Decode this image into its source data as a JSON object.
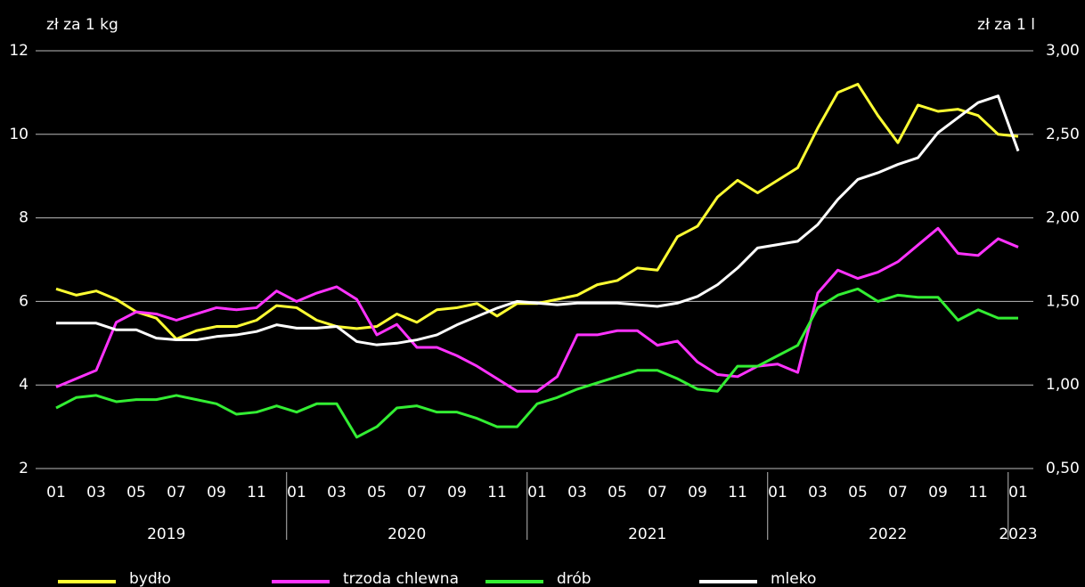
{
  "chart_data": {
    "type": "line",
    "y_label": "zł za 1 kg",
    "y2_label": "zł za 1 l",
    "categories": [
      "01",
      null,
      "03",
      null,
      "05",
      null,
      "07",
      null,
      "09",
      null,
      "11",
      null,
      "01",
      null,
      "03",
      null,
      "05",
      null,
      "07",
      null,
      "09",
      null,
      "11",
      null,
      "01",
      null,
      "03",
      null,
      "05",
      null,
      "07",
      null,
      "09",
      null,
      "11",
      null,
      "01",
      null,
      "03",
      null,
      "05",
      null,
      "07",
      null,
      "09",
      null,
      "11",
      null,
      "01"
    ],
    "years": [
      {
        "label": "2019",
        "months": 12
      },
      {
        "label": "2020",
        "months": 12
      },
      {
        "label": "2021",
        "months": 12
      },
      {
        "label": "2022",
        "months": 12
      },
      {
        "label": "2023",
        "months": 1
      }
    ],
    "ylim": [
      2,
      12
    ],
    "yticks": [
      2,
      4,
      6,
      8,
      10,
      12
    ],
    "y2lim": [
      0.5,
      3.0
    ],
    "y2ticks": [
      {
        "value": 0.5,
        "label": "0,50"
      },
      {
        "value": 1.0,
        "label": "1,00"
      },
      {
        "value": 1.5,
        "label": "1,50"
      },
      {
        "value": 2.0,
        "label": "2,00"
      },
      {
        "value": 2.5,
        "label": "2,50"
      },
      {
        "value": 3.0,
        "label": "3,00"
      }
    ],
    "grid": true,
    "legend": "bottom",
    "series": [
      {
        "name": "bydło",
        "color": "#ffff33",
        "values": [
          6.3,
          6.15,
          6.25,
          6.05,
          5.75,
          5.6,
          5.1,
          5.3,
          5.4,
          5.4,
          5.55,
          5.9,
          5.85,
          5.55,
          5.4,
          5.35,
          5.4,
          5.7,
          5.5,
          5.8,
          5.85,
          5.95,
          5.65,
          5.95,
          5.95,
          6.05,
          6.15,
          6.4,
          6.5,
          6.8,
          6.75,
          7.55,
          7.8,
          8.5,
          8.9,
          8.6,
          8.9,
          9.2,
          10.15,
          11.0,
          11.2,
          10.45,
          9.8,
          10.7,
          10.55,
          10.6,
          10.45,
          10.0,
          9.95
        ]
      },
      {
        "name": "trzoda chlewna",
        "color": "#ff33ff",
        "values": [
          3.95,
          4.15,
          4.35,
          5.5,
          5.75,
          5.7,
          5.55,
          5.7,
          5.85,
          5.8,
          5.85,
          6.25,
          6.0,
          6.2,
          6.35,
          6.05,
          5.2,
          5.45,
          4.9,
          4.9,
          4.7,
          4.45,
          4.15,
          3.85,
          3.85,
          4.2,
          5.2,
          5.2,
          5.3,
          5.3,
          4.95,
          5.05,
          4.55,
          4.25,
          4.2,
          4.45,
          4.5,
          4.3,
          6.2,
          6.75,
          6.55,
          6.7,
          6.95,
          7.35,
          7.75,
          7.15,
          7.1,
          7.5,
          7.3
        ]
      },
      {
        "name": "drób",
        "color": "#33ee33",
        "values": [
          3.45,
          3.7,
          3.75,
          3.6,
          3.65,
          3.65,
          3.75,
          3.65,
          3.55,
          3.3,
          3.35,
          3.5,
          3.35,
          3.55,
          3.55,
          2.75,
          3.0,
          3.45,
          3.5,
          3.35,
          3.35,
          3.2,
          3.0,
          3.0,
          3.55,
          3.7,
          3.9,
          4.05,
          4.2,
          4.35,
          4.35,
          4.15,
          3.9,
          3.85,
          4.45,
          4.45,
          4.7,
          4.95,
          5.85,
          6.15,
          6.3,
          6.0,
          6.15,
          6.1,
          6.1,
          5.55,
          5.8,
          5.6,
          5.6
        ]
      },
      {
        "name": "mleko",
        "color": "#ffffff",
        "axis": "y2",
        "values": [
          1.37,
          1.37,
          1.37,
          1.33,
          1.33,
          1.28,
          1.27,
          1.27,
          1.29,
          1.3,
          1.32,
          1.36,
          1.34,
          1.34,
          1.35,
          1.26,
          1.24,
          1.25,
          1.27,
          1.3,
          1.36,
          1.41,
          1.46,
          1.5,
          1.49,
          1.48,
          1.49,
          1.49,
          1.49,
          1.48,
          1.47,
          1.49,
          1.53,
          1.6,
          1.7,
          1.82,
          1.84,
          1.86,
          1.96,
          2.11,
          2.23,
          2.27,
          2.32,
          2.36,
          2.51,
          2.6,
          2.69,
          2.73,
          2.4
        ]
      }
    ]
  }
}
